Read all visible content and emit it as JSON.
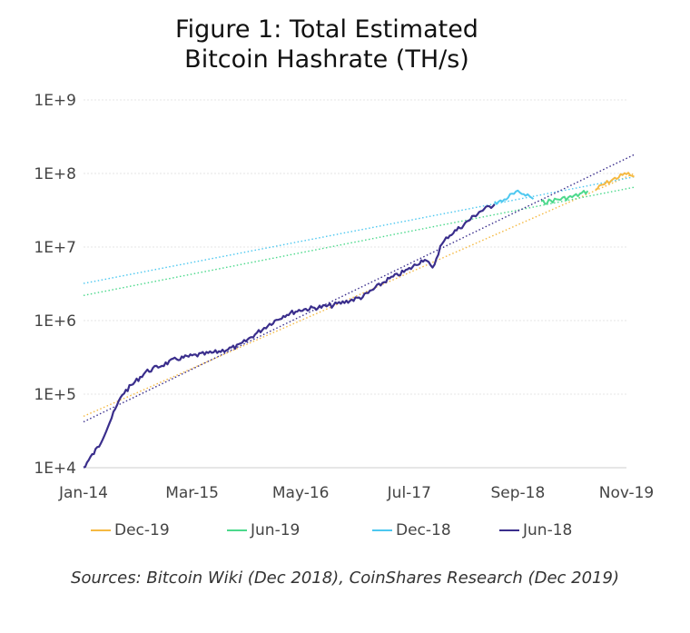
{
  "title_lines": [
    "Figure 1: Total Estimated",
    "Bitcoin Hashrate (TH/s)"
  ],
  "source": "Sources: Bitcoin Wiki (Dec 2018), CoinShares Research (Dec 2019)",
  "chart_data": {
    "type": "line",
    "title": "Figure 1: Total Estimated Bitcoin Hashrate (TH/s)",
    "xlabel": "",
    "ylabel": "",
    "y_scale": "log",
    "ylim": [
      10000,
      1000000000
    ],
    "xlim": [
      "Jan-14",
      "Nov-19"
    ],
    "x_ticks": [
      "Jan-14",
      "Mar-15",
      "May-16",
      "Jul-17",
      "Sep-18",
      "Nov-19"
    ],
    "y_ticks": [
      "1E+4",
      "1E+5",
      "1E+6",
      "1E+7",
      "1E+8",
      "1E+9"
    ],
    "grid": "horizontal",
    "legend_position": "bottom",
    "series": [
      {
        "name": "Dec-19",
        "color": "#f5b942",
        "x": [
          "Jul-19",
          "Aug-19",
          "Sep-19",
          "Oct-19",
          "Nov-19",
          "Dec-19"
        ],
        "y": [
          60000000,
          70000000,
          80000000,
          90000000,
          100000000,
          90000000
        ]
      },
      {
        "name": "Jun-19",
        "color": "#4cd98c",
        "x": [
          "Dec-18",
          "Jan-19",
          "Feb-19",
          "Mar-19",
          "Apr-19",
          "May-19",
          "Jun-19"
        ],
        "y": [
          40000000,
          42000000,
          44000000,
          46000000,
          48000000,
          52000000,
          58000000
        ]
      },
      {
        "name": "Dec-18",
        "color": "#4dc8f0",
        "x": [
          "Jun-18",
          "Jul-18",
          "Aug-18",
          "Sep-18",
          "Oct-18",
          "Nov-18"
        ],
        "y": [
          40000000,
          42000000,
          50000000,
          55000000,
          53000000,
          45000000
        ]
      },
      {
        "name": "Jun-18",
        "color": "#3a2e8c",
        "x": [
          "Jan-14",
          "Mar-14",
          "Jun-14",
          "Sep-14",
          "Jan-15",
          "Mar-15",
          "Jun-15",
          "Sep-15",
          "Jan-16",
          "Mar-16",
          "May-16",
          "Jul-16",
          "Sep-16",
          "Jan-17",
          "Apr-17",
          "Jul-17",
          "Sep-17",
          "Oct-17",
          "Nov-17",
          "Dec-17",
          "Feb-18",
          "Apr-18",
          "Jun-18"
        ],
        "y": [
          10000,
          20000,
          100000,
          200000,
          300000,
          330000,
          370000,
          450000,
          900000,
          1200000,
          1400000,
          1500000,
          1600000,
          2100000,
          3500000,
          5000000,
          7000000,
          5000000,
          10000000,
          14000000,
          20000000,
          30000000,
          38000000
        ]
      },
      {
        "name": "",
        "color": "#f5b942",
        "style": "dotted",
        "x": [
          "Jan-14",
          "Dec-19"
        ],
        "y": [
          50000,
          100000000
        ]
      },
      {
        "name": "",
        "color": "#4cd98c",
        "style": "dotted",
        "x": [
          "Jan-14",
          "Dec-19"
        ],
        "y": [
          2200000,
          65000000
        ]
      },
      {
        "name": "",
        "color": "#4dc8f0",
        "style": "dotted",
        "x": [
          "Jan-14",
          "Dec-19"
        ],
        "y": [
          3200000,
          90000000
        ]
      },
      {
        "name": "",
        "color": "#3a2e8c",
        "style": "dotted",
        "x": [
          "Jan-14",
          "Dec-19"
        ],
        "y": [
          42000,
          180000000
        ]
      }
    ]
  }
}
